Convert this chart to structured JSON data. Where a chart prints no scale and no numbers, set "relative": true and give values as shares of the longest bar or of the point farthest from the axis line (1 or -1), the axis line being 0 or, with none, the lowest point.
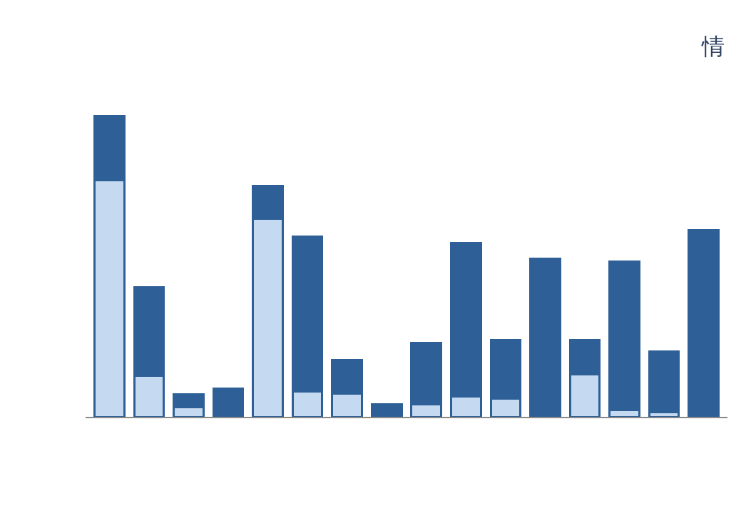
{
  "chart_data": {
    "type": "bar",
    "relative": true,
    "stacked": true,
    "categories": [
      null,
      null,
      null,
      null,
      null,
      null,
      null,
      null,
      null,
      null,
      null,
      null,
      null,
      null,
      null,
      null
    ],
    "series": [
      {
        "color": "#c5d9f1",
        "values": [
          0.785,
          0.137,
          0.032,
          0,
          0.659,
          0.085,
          0.076,
          0,
          0.042,
          0.067,
          0.061,
          0,
          0.142,
          0.023,
          0.015,
          0
        ]
      },
      {
        "color": "#2e5f96",
        "values": [
          0.215,
          0.294,
          0.043,
          0.093,
          0.108,
          0.514,
          0.112,
          0.042,
          0.203,
          0.51,
          0.194,
          0.525,
          0.112,
          0.493,
          0.203,
          0.62
        ]
      }
    ],
    "annotations": [
      "情"
    ]
  }
}
